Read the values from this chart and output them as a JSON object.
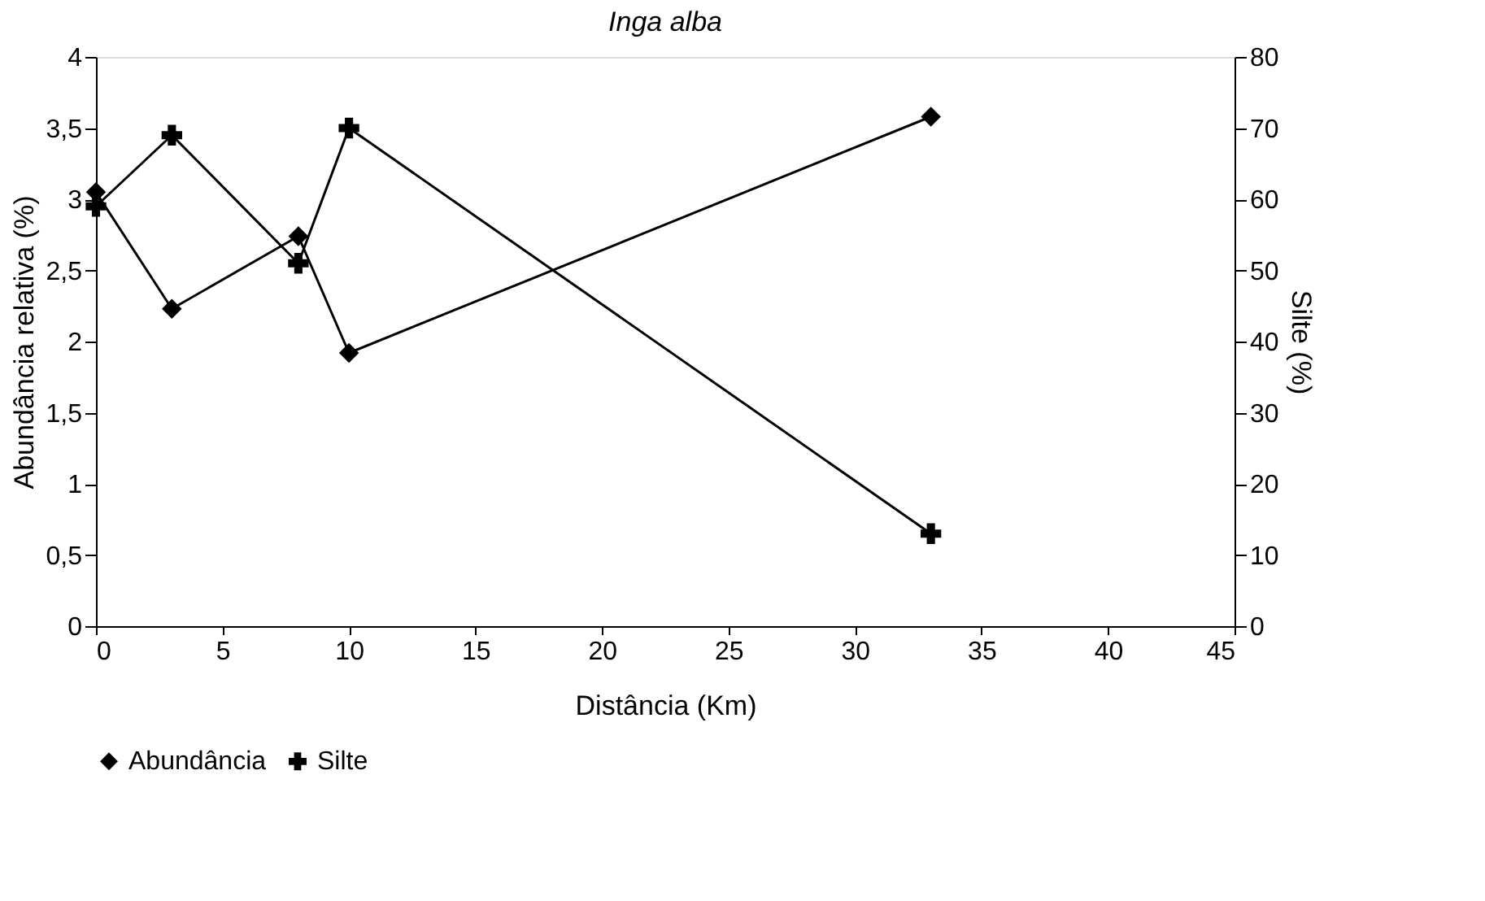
{
  "chart_data": {
    "type": "line",
    "title": "Inga alba",
    "xlabel": "Distância (Km)",
    "ylabel": "Abundância relativa (%)",
    "y2label": "Silte (%)",
    "xlim": [
      0,
      45
    ],
    "xticks": [
      0,
      5,
      10,
      15,
      20,
      25,
      30,
      35,
      40,
      45
    ],
    "ylim": [
      0,
      4
    ],
    "yticks": [
      0,
      {
        "value": 0.5,
        "label": "0,5"
      },
      1,
      {
        "value": 1.5,
        "label": "1,5"
      },
      2,
      {
        "value": 2.5,
        "label": "2,5"
      },
      3,
      {
        "value": 3.5,
        "label": "3,5"
      },
      4
    ],
    "y2lim": [
      0,
      80
    ],
    "y2ticks": [
      0,
      10,
      20,
      30,
      40,
      50,
      60,
      70,
      80
    ],
    "grid": false,
    "legend": "bottom",
    "line_style": "solid",
    "series": [
      {
        "name": "Abundância",
        "color": "#000000",
        "marker": "diamond",
        "x": [
          0,
          3,
          8,
          10,
          33
        ],
        "values": [
          3.05,
          2.23,
          2.74,
          1.92,
          3.58
        ]
      },
      {
        "name": "Silte",
        "color": "#000000",
        "marker": "cross",
        "axis": "y2",
        "x": [
          0,
          3,
          8,
          10,
          33
        ],
        "values": [
          59,
          69,
          51,
          70,
          13
        ]
      }
    ]
  }
}
